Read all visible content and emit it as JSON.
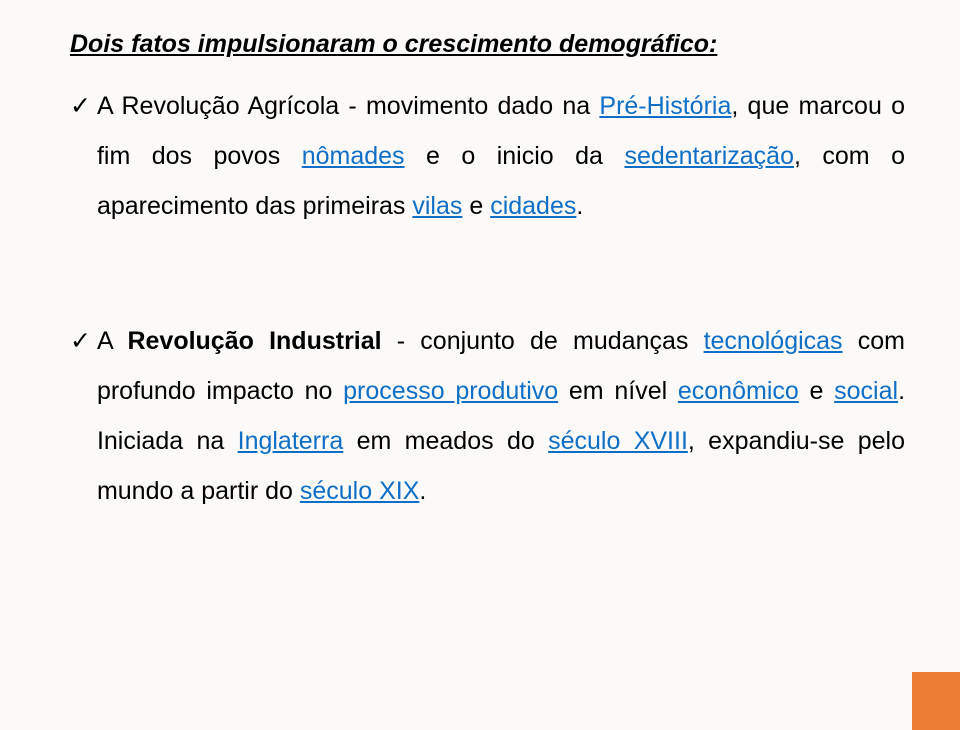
{
  "style": {
    "background_color": "#fbfaf8",
    "text_color": "#000000",
    "link_color": "#0f6fc6",
    "accent_color": "#ed7d31",
    "title_fontsize": 25,
    "body_fontsize": 25,
    "line_height": 2.0,
    "accent_box_width": 48,
    "accent_box_height": 58
  },
  "title": "Dois fatos impulsionaram o crescimento demográfico:",
  "bullets": [
    {
      "segments": [
        {
          "text": "A Revolução Agrícola - movimento dado na ",
          "link": false,
          "bold": false
        },
        {
          "text": "Pré-História",
          "link": true,
          "bold": false
        },
        {
          "text": ", que marcou o fim dos povos ",
          "link": false,
          "bold": false
        },
        {
          "text": "nômades",
          "link": true,
          "bold": false
        },
        {
          "text": " e o inicio da ",
          "link": false,
          "bold": false
        },
        {
          "text": "sedentarização",
          "link": true,
          "bold": false
        },
        {
          "text": ", com o aparecimento das primeiras ",
          "link": false,
          "bold": false
        },
        {
          "text": "vilas",
          "link": true,
          "bold": false
        },
        {
          "text": " e ",
          "link": false,
          "bold": false
        },
        {
          "text": "cidades",
          "link": true,
          "bold": false
        },
        {
          "text": ".",
          "link": false,
          "bold": false
        }
      ]
    },
    {
      "segments": [
        {
          "text": "A ",
          "link": false,
          "bold": false
        },
        {
          "text": "Revolução Industrial",
          "link": false,
          "bold": true
        },
        {
          "text": " - conjunto de mudanças ",
          "link": false,
          "bold": false
        },
        {
          "text": "tecnológicas",
          "link": true,
          "bold": false
        },
        {
          "text": " com profundo impacto no ",
          "link": false,
          "bold": false
        },
        {
          "text": "processo produtivo",
          "link": true,
          "bold": false
        },
        {
          "text": " em nível ",
          "link": false,
          "bold": false
        },
        {
          "text": "econômico",
          "link": true,
          "bold": false
        },
        {
          "text": " e ",
          "link": false,
          "bold": false
        },
        {
          "text": "social",
          "link": true,
          "bold": false
        },
        {
          "text": ". Iniciada na ",
          "link": false,
          "bold": false
        },
        {
          "text": "Inglaterra",
          "link": true,
          "bold": false
        },
        {
          "text": " em meados do ",
          "link": false,
          "bold": false
        },
        {
          "text": "século XVIII",
          "link": true,
          "bold": false
        },
        {
          "text": ", expandiu-se pelo mundo a partir do ",
          "link": false,
          "bold": false
        },
        {
          "text": "século XIX",
          "link": true,
          "bold": false
        },
        {
          "text": ".",
          "link": false,
          "bold": false
        }
      ]
    }
  ]
}
